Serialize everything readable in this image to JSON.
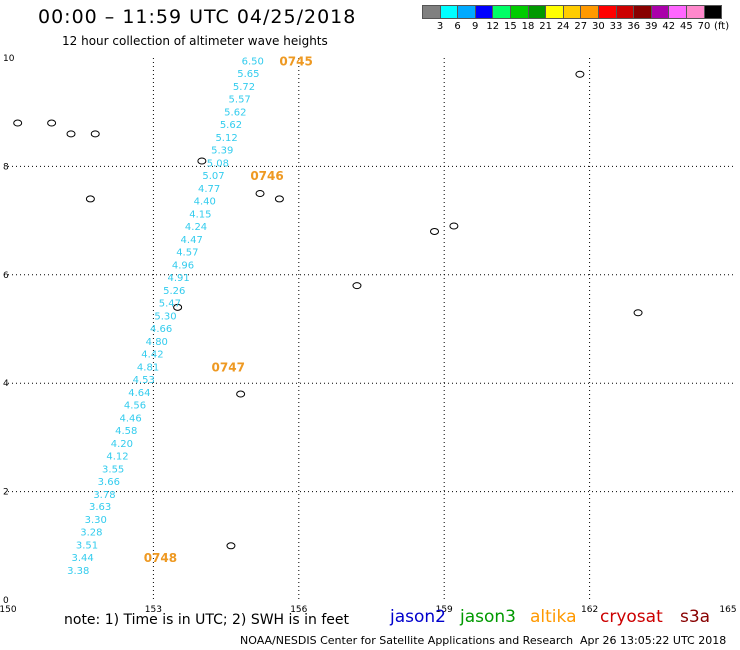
{
  "header": {
    "title": "00:00 – 11:59 UTC 04/25/2018",
    "subtitle": "12 hour collection of altimeter wave heights"
  },
  "legend": {
    "colors": [
      "#808080",
      "#00ffff",
      "#00aaff",
      "#0000ff",
      "#00ff66",
      "#00cc00",
      "#009900",
      "#ffff00",
      "#ffcc00",
      "#ff9900",
      "#ff0000",
      "#cc0000",
      "#880000",
      "#aa00aa",
      "#ff66ff",
      "#ff88cc",
      "#000000"
    ],
    "labels": [
      "3",
      "6",
      "9",
      "12",
      "15",
      "18",
      "21",
      "24",
      "27",
      "30",
      "33",
      "36",
      "39",
      "42",
      "45",
      "70",
      "(ft)"
    ]
  },
  "axes": {
    "x_ticks": [
      "150",
      "153",
      "156",
      "159",
      "162",
      "165"
    ],
    "y_ticks": [
      "0",
      "2",
      "4",
      "6",
      "8",
      "10"
    ]
  },
  "track": {
    "color": "#33ccee",
    "points": [
      {
        "lon": 155.05,
        "lat": 9.95,
        "swh": "6.50"
      },
      {
        "lon": 154.96,
        "lat": 9.72,
        "swh": "5.65"
      },
      {
        "lon": 154.87,
        "lat": 9.48,
        "swh": "5.72"
      },
      {
        "lon": 154.78,
        "lat": 9.25,
        "swh": "5.57"
      },
      {
        "lon": 154.69,
        "lat": 9.01,
        "swh": "5.62"
      },
      {
        "lon": 154.6,
        "lat": 8.78,
        "swh": "5.62"
      },
      {
        "lon": 154.51,
        "lat": 8.54,
        "swh": "5.12"
      },
      {
        "lon": 154.42,
        "lat": 8.31,
        "swh": "5.39"
      },
      {
        "lon": 154.33,
        "lat": 8.07,
        "swh": "5.08"
      },
      {
        "lon": 154.24,
        "lat": 7.84,
        "swh": "5.07"
      },
      {
        "lon": 154.15,
        "lat": 7.6,
        "swh": "4.77"
      },
      {
        "lon": 154.06,
        "lat": 7.37,
        "swh": "4.40"
      },
      {
        "lon": 153.97,
        "lat": 7.13,
        "swh": "4.15"
      },
      {
        "lon": 153.88,
        "lat": 6.9,
        "swh": "4.24"
      },
      {
        "lon": 153.79,
        "lat": 6.66,
        "swh": "4.47"
      },
      {
        "lon": 153.7,
        "lat": 6.43,
        "swh": "4.57"
      },
      {
        "lon": 153.61,
        "lat": 6.19,
        "swh": "4.96"
      },
      {
        "lon": 153.52,
        "lat": 5.96,
        "swh": "4.91"
      },
      {
        "lon": 153.43,
        "lat": 5.72,
        "swh": "5.26"
      },
      {
        "lon": 153.34,
        "lat": 5.49,
        "swh": "5.47"
      },
      {
        "lon": 153.25,
        "lat": 5.25,
        "swh": "5.30"
      },
      {
        "lon": 153.16,
        "lat": 5.02,
        "swh": "4.66"
      },
      {
        "lon": 153.07,
        "lat": 4.78,
        "swh": "4.80"
      },
      {
        "lon": 152.98,
        "lat": 4.55,
        "swh": "4.42"
      },
      {
        "lon": 152.89,
        "lat": 4.31,
        "swh": "4.81"
      },
      {
        "lon": 152.8,
        "lat": 4.08,
        "swh": "4.53"
      },
      {
        "lon": 152.71,
        "lat": 3.84,
        "swh": "4.64"
      },
      {
        "lon": 152.62,
        "lat": 3.61,
        "swh": "4.56"
      },
      {
        "lon": 152.53,
        "lat": 3.37,
        "swh": "4.46"
      },
      {
        "lon": 152.44,
        "lat": 3.14,
        "swh": "4.58"
      },
      {
        "lon": 152.35,
        "lat": 2.9,
        "swh": "4.20"
      },
      {
        "lon": 152.26,
        "lat": 2.67,
        "swh": "4.12"
      },
      {
        "lon": 152.17,
        "lat": 2.43,
        "swh": "3.55"
      },
      {
        "lon": 152.08,
        "lat": 2.2,
        "swh": "3.66"
      },
      {
        "lon": 151.99,
        "lat": 1.96,
        "swh": "3.78"
      },
      {
        "lon": 151.9,
        "lat": 1.73,
        "swh": "3.63"
      },
      {
        "lon": 151.81,
        "lat": 1.49,
        "swh": "3.30"
      },
      {
        "lon": 151.72,
        "lat": 1.26,
        "swh": "3.28"
      },
      {
        "lon": 151.63,
        "lat": 1.02,
        "swh": "3.51"
      },
      {
        "lon": 151.54,
        "lat": 0.79,
        "swh": "3.44"
      },
      {
        "lon": 151.45,
        "lat": 0.55,
        "swh": "3.38"
      }
    ],
    "time_labels": [
      {
        "text": "0745",
        "lon": 155.6,
        "lat": 9.95
      },
      {
        "text": "0746",
        "lon": 155.0,
        "lat": 7.84
      },
      {
        "text": "0747",
        "lon": 154.2,
        "lat": 4.31
      },
      {
        "text": "0748",
        "lon": 152.8,
        "lat": 0.79
      }
    ],
    "time_label_color": "#ee9922"
  },
  "islands": [
    {
      "lon": 150.2,
      "lat": 8.8
    },
    {
      "lon": 151.3,
      "lat": 8.6
    },
    {
      "lon": 151.8,
      "lat": 8.6
    },
    {
      "lon": 151.7,
      "lat": 7.4
    },
    {
      "lon": 154.0,
      "lat": 8.1
    },
    {
      "lon": 155.2,
      "lat": 7.5
    },
    {
      "lon": 155.6,
      "lat": 7.4
    },
    {
      "lon": 159.2,
      "lat": 6.9
    },
    {
      "lon": 158.8,
      "lat": 6.8
    },
    {
      "lon": 157.2,
      "lat": 5.8
    },
    {
      "lon": 153.5,
      "lat": 5.4
    },
    {
      "lon": 154.8,
      "lat": 3.8
    },
    {
      "lon": 154.6,
      "lat": 1.0
    },
    {
      "lon": 161.8,
      "lat": 9.7
    },
    {
      "lon": 163.0,
      "lat": 5.3
    },
    {
      "lon": 150.9,
      "lat": 8.8
    }
  ],
  "footer": {
    "note": "note:  1) Time is in UTC; 2) SWH is in feet",
    "satellites": [
      {
        "name": "jason2",
        "color": "#0000cc"
      },
      {
        "name": "jason3",
        "color": "#009900"
      },
      {
        "name": "altika",
        "color": "#ff9900"
      },
      {
        "name": "cryosat",
        "color": "#cc0000"
      },
      {
        "name": "s3a",
        "color": "#880000"
      }
    ],
    "credit": "NOAA/NESDIS Center for Satellite Applications and Research",
    "date": "Apr 26 13:05:22 UTC 2018"
  }
}
